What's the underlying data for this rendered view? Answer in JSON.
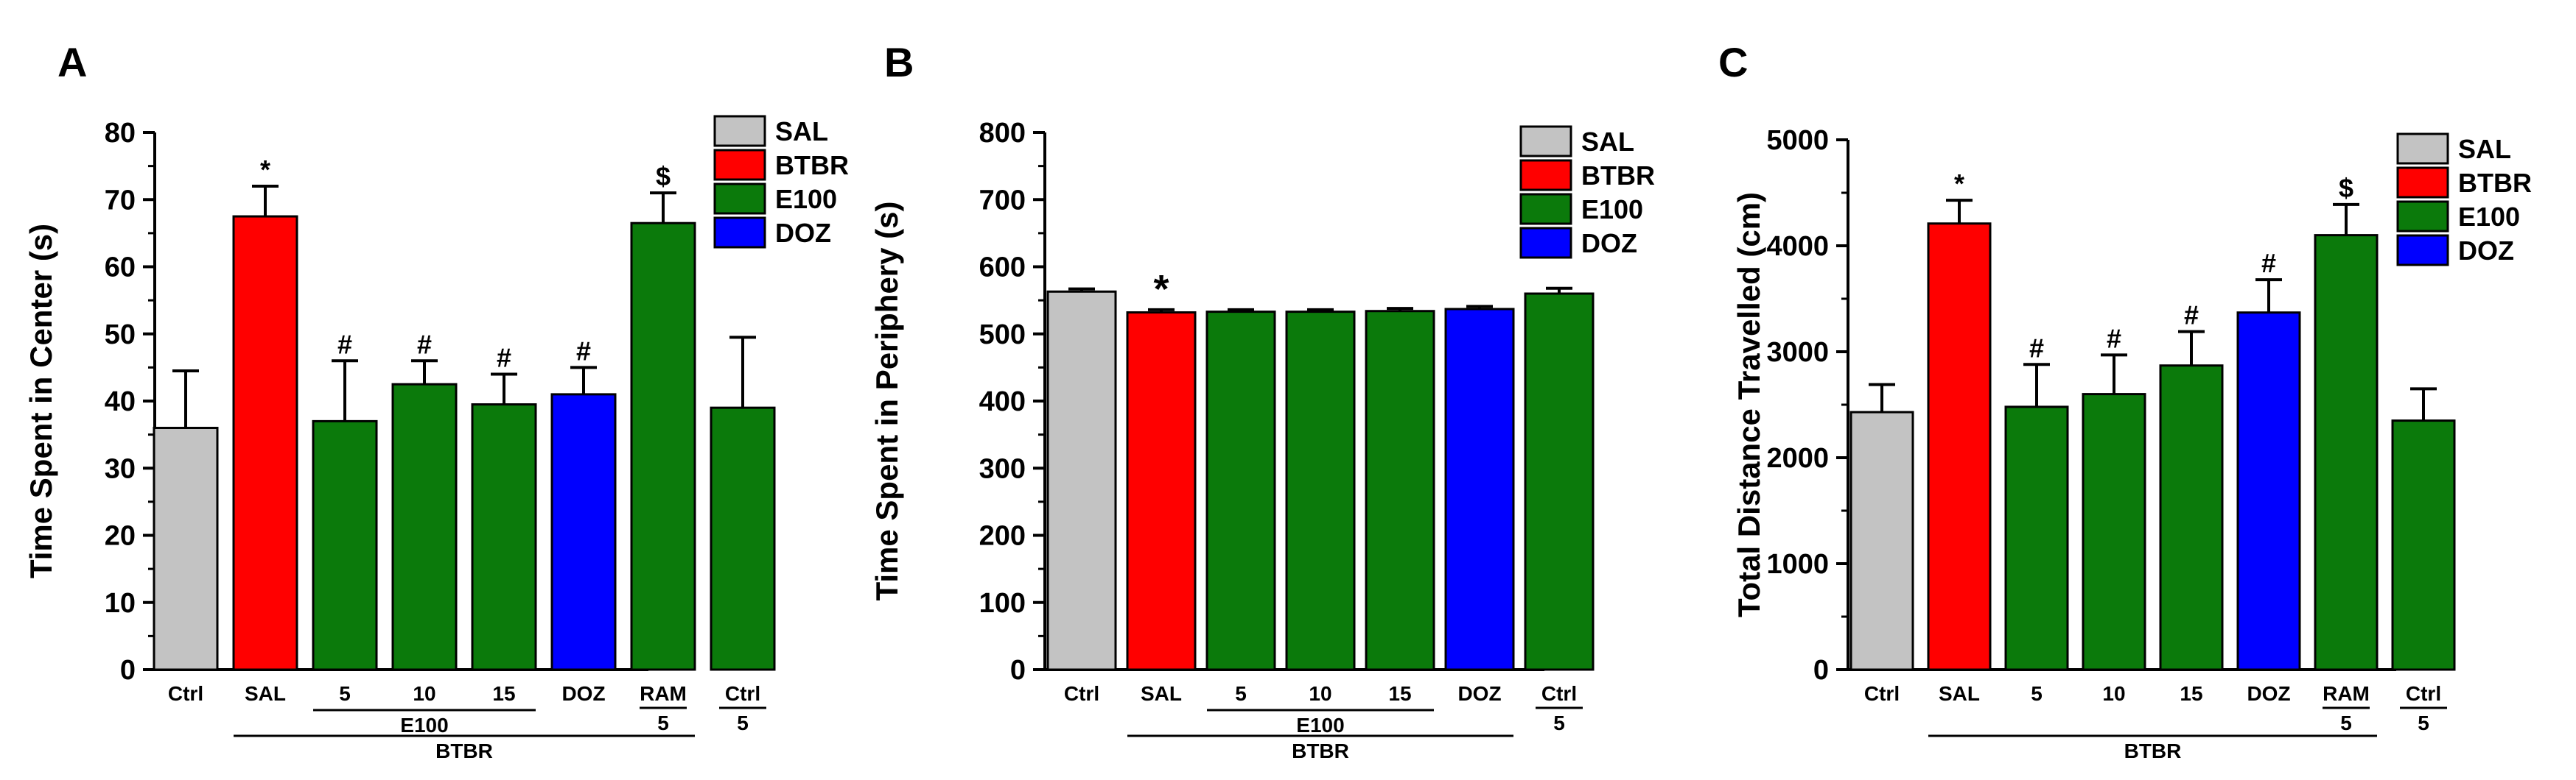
{
  "colors": {
    "SAL": "#c3c3c3",
    "BTBR": "#ff0000",
    "E100": "#0b7a0b",
    "DOZ": "#0000ff",
    "axis": "#000000"
  },
  "legend": [
    {
      "label": "SAL",
      "color": "#c3c3c3"
    },
    {
      "label": "BTBR",
      "color": "#ff0000"
    },
    {
      "label": "E100",
      "color": "#0b7a0b"
    },
    {
      "label": "DOZ",
      "color": "#0000ff"
    }
  ],
  "chart_data": [
    {
      "panel": "A",
      "type": "bar",
      "ylabel": "Time Spent in Center (s)",
      "ylim": [
        0,
        80
      ],
      "yticks": [
        0,
        10,
        20,
        30,
        40,
        50,
        60,
        70,
        80
      ],
      "categories": [
        "Ctrl",
        "SAL",
        "5",
        "10",
        "15",
        "DOZ",
        "RAM",
        "Ctrl"
      ],
      "sublabels": [
        "",
        "",
        "",
        "",
        "",
        "",
        "5",
        "5"
      ],
      "values": [
        36,
        67.5,
        37,
        42.5,
        39.5,
        41,
        66.5,
        39
      ],
      "errors": [
        8.5,
        4.5,
        9,
        3.5,
        4.5,
        4,
        4.5,
        10.5
      ],
      "groups": [
        "SAL",
        "BTBR",
        "E100",
        "E100",
        "E100",
        "DOZ",
        "E100",
        "E100"
      ],
      "annotations": [
        "",
        "*",
        "#",
        "#",
        "#",
        "#",
        "$",
        ""
      ],
      "group_labels": [
        {
          "text": "E100",
          "from": 2,
          "to": 4
        },
        {
          "text": "BTBR",
          "from": 1,
          "to": 6
        }
      ]
    },
    {
      "panel": "B",
      "type": "bar",
      "ylabel": "Time Spent in Periphery (s)",
      "ylim": [
        0,
        800
      ],
      "yticks": [
        0,
        100,
        200,
        300,
        400,
        500,
        600,
        700,
        800
      ],
      "categories": [
        "Ctrl",
        "SAL",
        "5",
        "10",
        "15",
        "DOZ",
        "Ctrl"
      ],
      "sublabels": [
        "",
        "",
        "",
        "",
        "",
        "",
        "5"
      ],
      "values": [
        563,
        532,
        533,
        533,
        534,
        537,
        560
      ],
      "errors": [
        4,
        4,
        3,
        3,
        4,
        4,
        8
      ],
      "groups": [
        "SAL",
        "BTBR",
        "E100",
        "E100",
        "E100",
        "DOZ",
        "E100"
      ],
      "annotations": [
        "",
        "*",
        "",
        "",
        "",
        "",
        ""
      ],
      "group_labels": [
        {
          "text": "E100",
          "from": 2,
          "to": 4
        },
        {
          "text": "BTBR",
          "from": 1,
          "to": 5
        }
      ]
    },
    {
      "panel": "C",
      "type": "bar",
      "ylabel": "Total Distance Travelled (cm)",
      "ylim": [
        0,
        5000
      ],
      "yticks": [
        0,
        1000,
        2000,
        3000,
        4000,
        5000
      ],
      "categories": [
        "Ctrl",
        "SAL",
        "5",
        "10",
        "15",
        "DOZ",
        "RAM",
        "Ctrl"
      ],
      "sublabels": [
        "",
        "",
        "",
        "",
        "",
        "",
        "5",
        "5"
      ],
      "values": [
        2430,
        4210,
        2480,
        2600,
        2870,
        3370,
        4100,
        2350
      ],
      "errors": [
        260,
        220,
        400,
        370,
        320,
        310,
        290,
        300
      ],
      "groups": [
        "SAL",
        "BTBR",
        "E100",
        "E100",
        "E100",
        "DOZ",
        "E100",
        "E100"
      ],
      "annotations": [
        "",
        "*",
        "#",
        "#",
        "#",
        "#",
        "$",
        ""
      ],
      "group_labels": [
        {
          "text": "BTBR",
          "from": 1,
          "to": 6
        }
      ]
    }
  ]
}
